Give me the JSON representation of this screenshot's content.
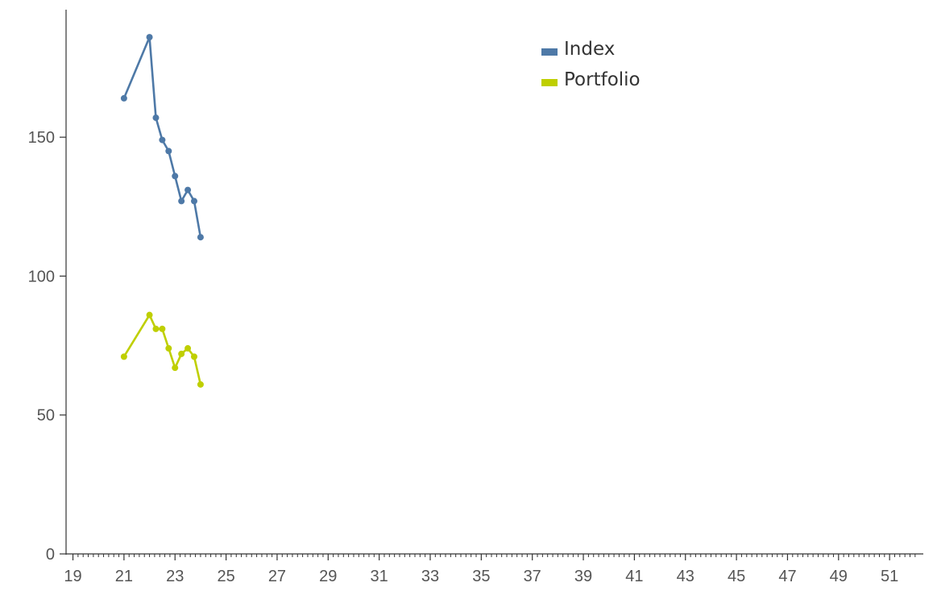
{
  "chart_data": {
    "type": "line",
    "title": "",
    "xlabel": "",
    "ylabel": "",
    "xlim": [
      18.92,
      52.1
    ],
    "ylim": [
      0,
      193
    ],
    "x_ticks": [
      19,
      21,
      23,
      25,
      27,
      29,
      31,
      33,
      35,
      37,
      39,
      41,
      43,
      45,
      47,
      49,
      51
    ],
    "y_ticks": [
      0,
      50,
      100,
      150
    ],
    "grid": false,
    "legend_position": "top-right",
    "series": [
      {
        "name": "Index",
        "color": "#4e79a7",
        "x": [
          21.0,
          22.0,
          22.25,
          22.5,
          22.75,
          23.0,
          23.25,
          23.5,
          23.75,
          24.0
        ],
        "y": [
          164,
          186,
          157,
          149,
          145,
          136,
          127,
          131,
          127,
          114
        ]
      },
      {
        "name": "Portfolio",
        "color": "#bfcf00",
        "x": [
          21.0,
          22.0,
          22.25,
          22.5,
          22.75,
          23.0,
          23.25,
          23.5,
          23.75,
          24.0
        ],
        "y": [
          71,
          86,
          81,
          81,
          74,
          67,
          72,
          74,
          71,
          61
        ]
      }
    ]
  }
}
